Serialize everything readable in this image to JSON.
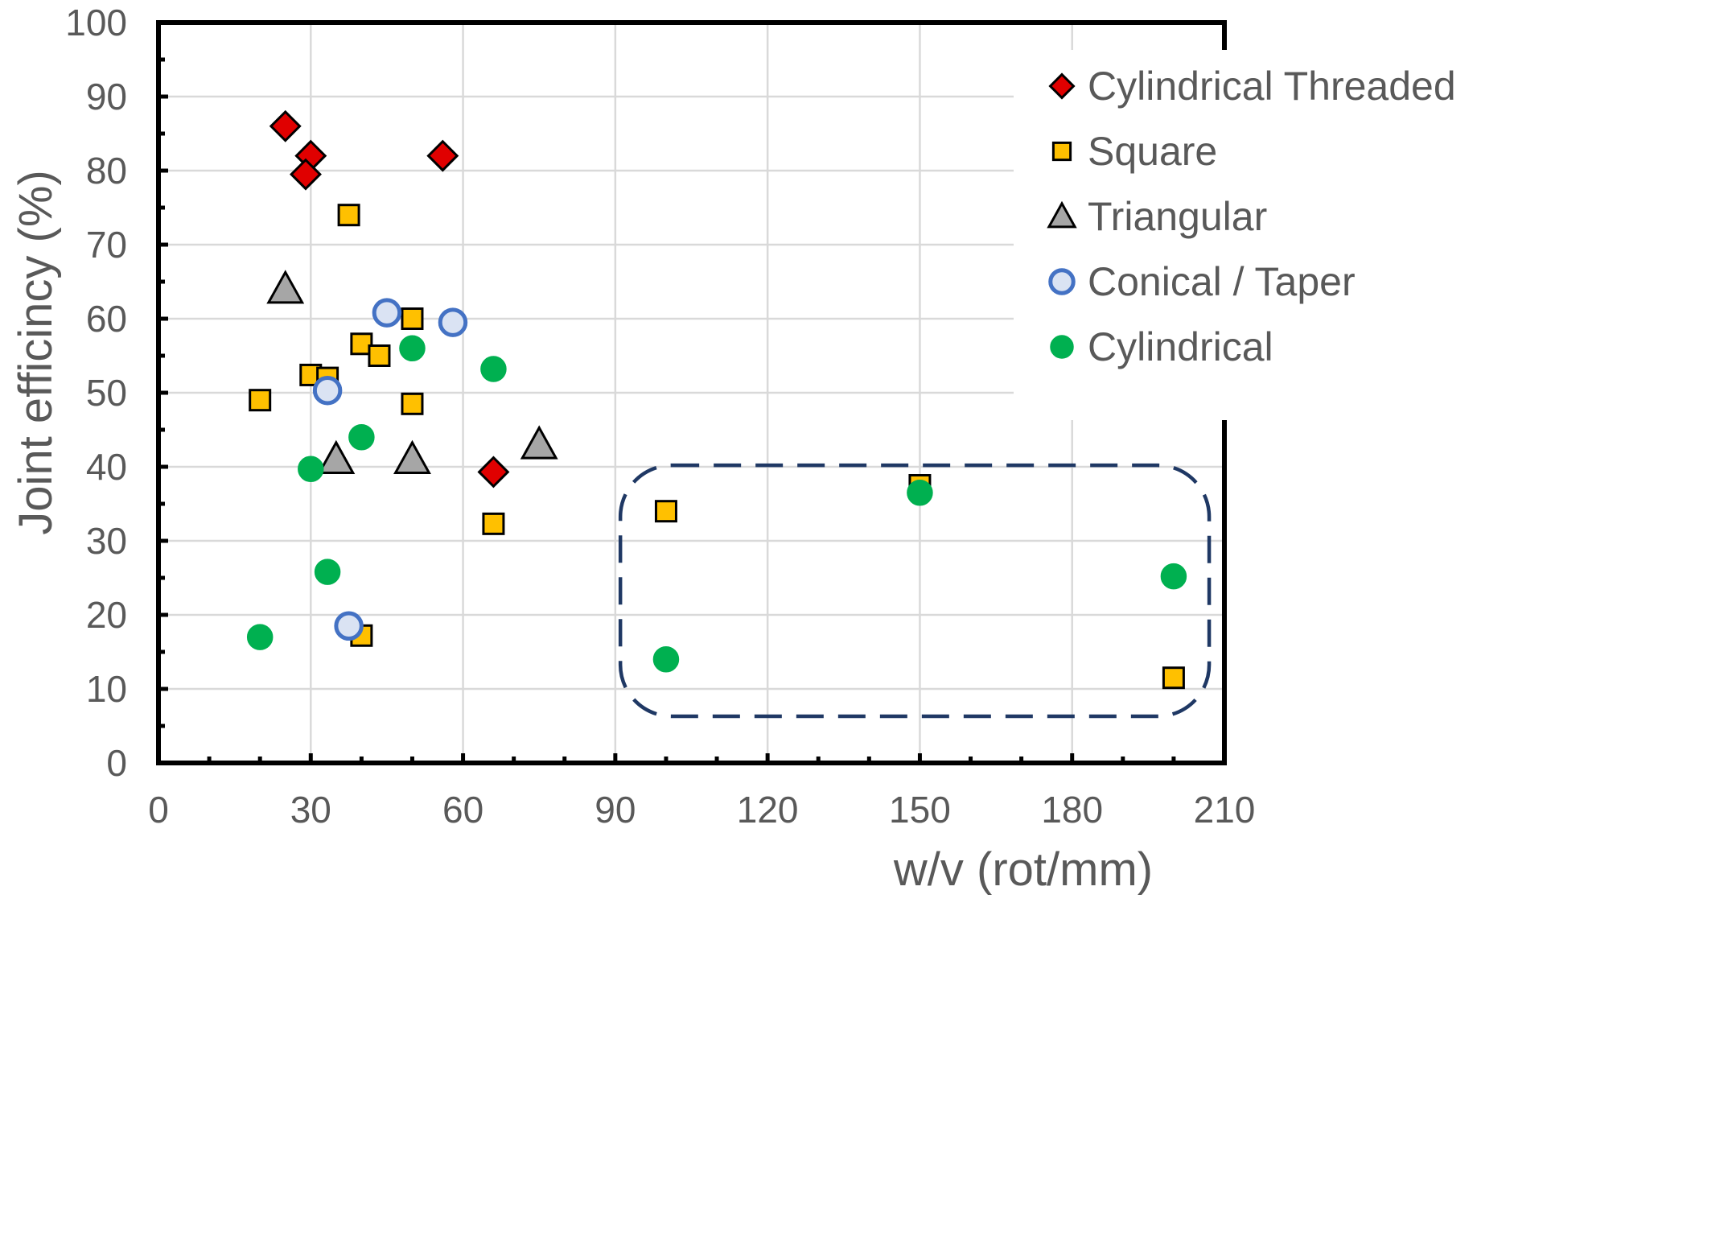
{
  "chart_data": {
    "type": "scatter",
    "title": "",
    "xlabel": "w/v (rot/mm)",
    "ylabel": "Joint efficincy (%)",
    "xlim": [
      0,
      210
    ],
    "ylim": [
      0,
      100
    ],
    "x_ticks": [
      0,
      30,
      60,
      90,
      120,
      150,
      180,
      210
    ],
    "y_ticks": [
      0,
      10,
      20,
      30,
      40,
      50,
      60,
      70,
      80,
      90,
      100
    ],
    "x_tick_labels": [
      "0",
      "30",
      "60",
      "90",
      "120",
      "150",
      "180",
      "210"
    ],
    "y_tick_labels": [
      "0",
      "10",
      "20",
      "30",
      "40",
      "50",
      "60",
      "70",
      "80",
      "90",
      "100"
    ],
    "grid": true,
    "legend_position": "top-right",
    "series": [
      {
        "name": "Cylindrical Threaded",
        "marker": "diamond",
        "fill": "#e00000",
        "stroke": "#000000",
        "points": [
          [
            25,
            86
          ],
          [
            30,
            82
          ],
          [
            29,
            79.5
          ],
          [
            56,
            82
          ],
          [
            66,
            39.3
          ]
        ]
      },
      {
        "name": "Square",
        "marker": "square",
        "fill": "#ffc000",
        "stroke": "#000000",
        "points": [
          [
            37.5,
            74
          ],
          [
            50,
            60
          ],
          [
            40,
            56.6
          ],
          [
            43.5,
            55
          ],
          [
            30,
            52.4
          ],
          [
            33.3,
            52
          ],
          [
            20,
            49
          ],
          [
            50,
            48.5
          ],
          [
            66,
            32.3
          ],
          [
            40,
            17.2
          ],
          [
            100,
            34
          ],
          [
            150,
            37.5
          ],
          [
            200,
            11.5
          ]
        ]
      },
      {
        "name": "Triangular",
        "marker": "triangle",
        "fill": "#a6a6a6",
        "stroke": "#000000",
        "points": [
          [
            25,
            64
          ],
          [
            35,
            41
          ],
          [
            50,
            41
          ],
          [
            75,
            43
          ]
        ]
      },
      {
        "name": "Conical / Taper",
        "marker": "circle-open",
        "fill": "#dae3f3",
        "stroke": "#4472c4",
        "points": [
          [
            45,
            60.8
          ],
          [
            58,
            59.5
          ],
          [
            33.3,
            50.3
          ],
          [
            37.5,
            18.5
          ]
        ]
      },
      {
        "name": "Cylindrical",
        "marker": "circle",
        "fill": "#00b050",
        "stroke": "#00b050",
        "points": [
          [
            50,
            56
          ],
          [
            66,
            53.2
          ],
          [
            40,
            44
          ],
          [
            30,
            39.7
          ],
          [
            33.3,
            25.8
          ],
          [
            20,
            17
          ],
          [
            100,
            14
          ],
          [
            150,
            36.5
          ],
          [
            200,
            25.2
          ]
        ]
      }
    ],
    "annotations": [
      {
        "type": "dashed-rounded-box",
        "color": "#1f3864",
        "x_range": [
          91,
          207
        ],
        "y_range": [
          6.3,
          40.2
        ]
      }
    ]
  }
}
